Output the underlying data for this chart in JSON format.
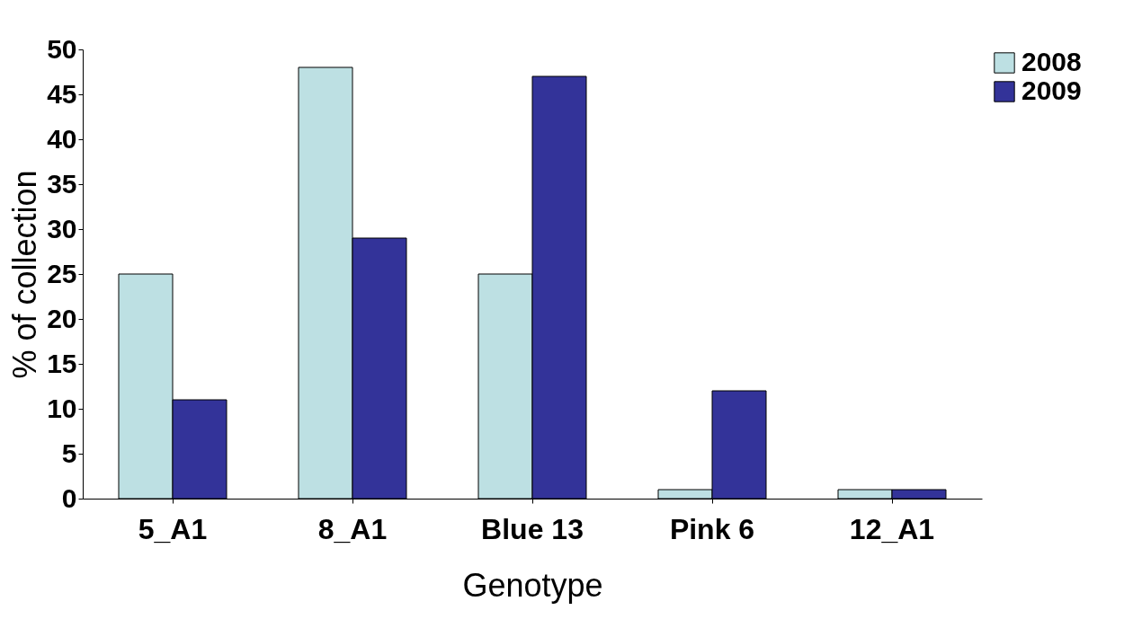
{
  "chart_data": {
    "type": "bar",
    "xlabel": "Genotype",
    "ylabel": "% of collection",
    "categories": [
      "5_A1",
      "8_A1",
      "Blue 13",
      "Pink 6",
      "12_A1"
    ],
    "series": [
      {
        "name": "2008",
        "color": "#bde0e3",
        "values": [
          25,
          48,
          25,
          1,
          1
        ]
      },
      {
        "name": "2009",
        "color": "#333399",
        "values": [
          11,
          29,
          47,
          12,
          1
        ]
      }
    ],
    "ylim": [
      0,
      50
    ],
    "yticks": [
      0,
      5,
      10,
      15,
      20,
      25,
      30,
      35,
      40,
      45,
      50
    ],
    "grid": false,
    "legend": "top right"
  }
}
